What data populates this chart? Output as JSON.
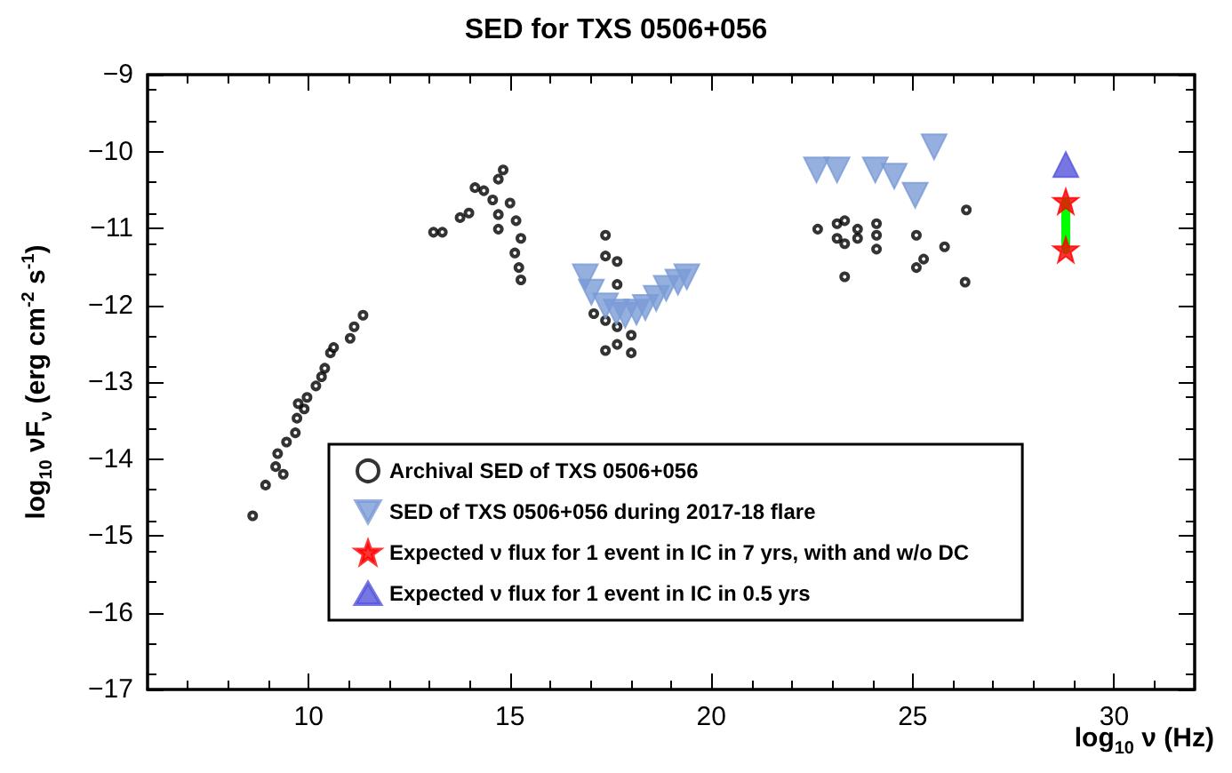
{
  "chart_data": {
    "type": "scatter",
    "title": "SED for TXS 0506+056",
    "xlabel": "log$_{10}$ ν (Hz)",
    "ylabel": "log$_{10}$ νF$_{ν}$ (erg cm$^{-2}$ s$^{-1}$)",
    "xlim": [
      6,
      32
    ],
    "xticks": [
      10,
      15,
      20,
      25,
      30
    ],
    "ylim": [
      -17,
      -9
    ],
    "yticks": [
      -17,
      -16,
      -15,
      -14,
      -13,
      -12,
      -11,
      -10,
      -9
    ],
    "grid": false,
    "legend": "bottom",
    "series": [
      {
        "name": "Archival SED of TXS 0506+056",
        "color": "#000000",
        "marker": "circle",
        "x": [
          8.61,
          8.93,
          9.18,
          9.37,
          9.23,
          9.45,
          9.67,
          9.71,
          9.89,
          9.74,
          9.96,
          10.18,
          10.32,
          10.4,
          10.54,
          10.62,
          11.03,
          11.13,
          11.35,
          13.1,
          13.32,
          13.76,
          13.98,
          14.13,
          14.35,
          14.57,
          14.71,
          14.71,
          14.71,
          14.83,
          15.0,
          15.15,
          15.27,
          15.12,
          15.22,
          15.27,
          17.37,
          17.37,
          17.66,
          17.66,
          17.08,
          17.37,
          17.37,
          17.66,
          17.66,
          18.01,
          18.01,
          22.64,
          23.12,
          23.12,
          23.31,
          23.31,
          23.31,
          23.63,
          23.63,
          24.1,
          24.1,
          24.1,
          25.09,
          25.09,
          25.27,
          25.79,
          26.33,
          26.3
        ],
        "values": [
          -14.74,
          -14.34,
          -14.1,
          -14.2,
          -13.93,
          -13.78,
          -13.66,
          -13.47,
          -13.35,
          -13.28,
          -13.2,
          -13.05,
          -12.93,
          -12.82,
          -12.62,
          -12.55,
          -12.43,
          -12.28,
          -12.13,
          -11.05,
          -11.05,
          -10.86,
          -10.8,
          -10.47,
          -10.51,
          -10.63,
          -10.36,
          -10.82,
          -11.01,
          -10.24,
          -10.67,
          -10.9,
          -11.13,
          -11.32,
          -11.51,
          -11.67,
          -11.09,
          -11.36,
          -11.43,
          -11.73,
          -12.11,
          -12.2,
          -12.59,
          -12.28,
          -12.51,
          -12.39,
          -12.62,
          -11.01,
          -10.94,
          -11.13,
          -10.9,
          -11.2,
          -11.63,
          -11.01,
          -11.13,
          -10.94,
          -11.09,
          -11.27,
          -11.09,
          -11.51,
          -11.4,
          -11.24,
          -10.76,
          -11.7
        ]
      },
      {
        "name": "SED of TXS 0506+056 during 2017-18 flare",
        "color": "#7b9bd6",
        "marker": "triangle-down",
        "x": [
          16.87,
          17.02,
          17.37,
          17.64,
          17.86,
          18.14,
          18.36,
          18.63,
          18.88,
          19.17,
          19.39,
          22.61,
          23.12,
          24.07,
          24.54,
          25.06,
          25.53
        ],
        "values": [
          -11.63,
          -11.83,
          -12.01,
          -12.09,
          -12.13,
          -12.09,
          -12.03,
          -11.91,
          -11.78,
          -11.7,
          -11.63,
          -10.24,
          -10.24,
          -10.24,
          -10.32,
          -10.57,
          -9.94
        ]
      },
      {
        "type": "line",
        "color": "#00ff00",
        "marker": "none",
        "x": [
          28.8,
          28.8
        ],
        "values": [
          -10.65,
          -11.28
        ]
      },
      {
        "name": "Expected ν flux for 1 event in IC in 7 yrs, with and w/o DC",
        "color": "#ff0000",
        "marker": "star",
        "x": [
          28.8,
          28.8
        ],
        "values": [
          -10.65,
          -11.28
        ]
      },
      {
        "name": "Expected ν flux for 1 event in IC in 0.5 yrs",
        "color": "#5555dd",
        "marker": "triangle",
        "x": [
          28.8
        ],
        "values": [
          -10.17
        ]
      }
    ]
  }
}
